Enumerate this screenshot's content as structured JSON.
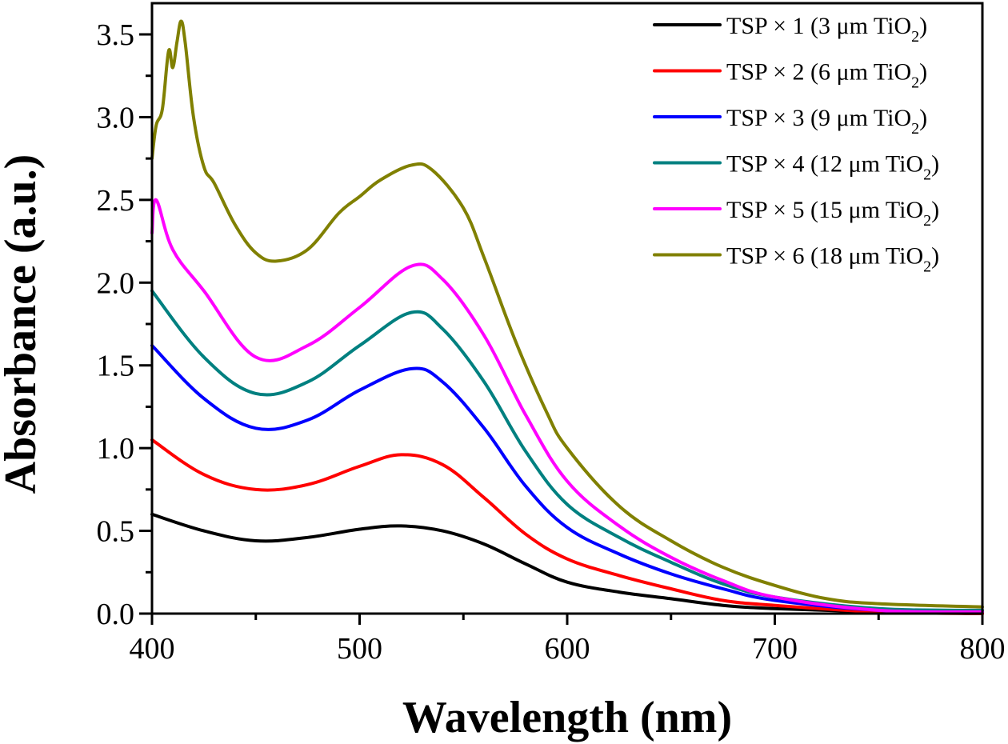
{
  "chart_data": {
    "type": "line",
    "title": "",
    "xlabel": "Wavelength (nm)",
    "ylabel": "Absorbance (a.u.)",
    "xlim": [
      400,
      800
    ],
    "ylim": [
      0.0,
      3.7
    ],
    "x_ticks": [
      400,
      500,
      600,
      700,
      800
    ],
    "x_tick_labels": [
      "400",
      "500",
      "600",
      "700",
      "800"
    ],
    "x_minor_ticks": [
      450,
      550,
      650,
      750
    ],
    "y_ticks": [
      0.0,
      0.5,
      1.0,
      1.5,
      2.0,
      2.5,
      3.0,
      3.5
    ],
    "y_tick_labels": [
      "0.0",
      "0.5",
      "1.0",
      "1.5",
      "2.0",
      "2.5",
      "3.0",
      "3.5"
    ],
    "y_minor_ticks": [
      0.25,
      0.75,
      1.25,
      1.75,
      2.25,
      2.75,
      3.25
    ],
    "grid": false,
    "legend_position": "top-right",
    "series": [
      {
        "name": "TSP × 1 (3 μm TiO2)",
        "label_main": "TSP × 1 (3 μm TiO",
        "label_sub": "2",
        "label_end": ")",
        "color": "#000000",
        "x": [
          400,
          425,
          450,
          475,
          500,
          520,
          540,
          560,
          580,
          600,
          625,
          650,
          675,
          700,
          750,
          800
        ],
        "y": [
          0.6,
          0.5,
          0.44,
          0.46,
          0.51,
          0.53,
          0.5,
          0.42,
          0.3,
          0.19,
          0.13,
          0.09,
          0.05,
          0.03,
          0.01,
          0.0
        ]
      },
      {
        "name": "TSP × 2 (6 μm TiO2)",
        "label_main": "TSP × 2 (6 μm TiO",
        "label_sub": "2",
        "label_end": ")",
        "color": "#ff0000",
        "x": [
          400,
          425,
          450,
          475,
          500,
          520,
          540,
          560,
          580,
          600,
          625,
          650,
          675,
          700,
          750,
          800
        ],
        "y": [
          1.05,
          0.84,
          0.75,
          0.78,
          0.89,
          0.96,
          0.9,
          0.7,
          0.48,
          0.33,
          0.23,
          0.15,
          0.08,
          0.05,
          0.01,
          0.0
        ]
      },
      {
        "name": "TSP × 3 (9 μm TiO2)",
        "label_main": "TSP × 3 (9 μm TiO",
        "label_sub": "2",
        "label_end": ")",
        "color": "#0000ff",
        "x": [
          400,
          425,
          450,
          475,
          500,
          525,
          540,
          560,
          580,
          600,
          625,
          650,
          675,
          700,
          750,
          800
        ],
        "y": [
          1.62,
          1.3,
          1.12,
          1.17,
          1.35,
          1.48,
          1.4,
          1.12,
          0.77,
          0.52,
          0.36,
          0.24,
          0.15,
          0.08,
          0.02,
          0.01
        ]
      },
      {
        "name": "TSP × 4 (12 μm TiO2)",
        "label_main": "TSP × 4 (12 μm TiO",
        "label_sub": "2",
        "label_end": ")",
        "color": "#008080",
        "x": [
          400,
          425,
          450,
          475,
          500,
          525,
          540,
          560,
          580,
          600,
          625,
          650,
          675,
          700,
          750,
          800
        ],
        "y": [
          1.95,
          1.55,
          1.33,
          1.4,
          1.62,
          1.82,
          1.72,
          1.4,
          0.98,
          0.66,
          0.46,
          0.31,
          0.18,
          0.1,
          0.03,
          0.02
        ]
      },
      {
        "name": "TSP × 5 (15 μm TiO2)",
        "label_main": "TSP × 5 (15 μm TiO",
        "label_sub": "2",
        "label_end": ")",
        "color": "#ff00ff",
        "x": [
          400,
          402,
          410,
          425,
          450,
          475,
          500,
          525,
          540,
          560,
          580,
          600,
          625,
          650,
          675,
          700,
          750,
          800
        ],
        "y": [
          2.3,
          2.5,
          2.2,
          1.95,
          1.55,
          1.62,
          1.85,
          2.1,
          2.02,
          1.68,
          1.2,
          0.8,
          0.53,
          0.34,
          0.2,
          0.1,
          0.02,
          0.01
        ]
      },
      {
        "name": "TSP × 6 (18 μm TiO2)",
        "label_main": "TSP × 6 (18 μm TiO",
        "label_sub": "2",
        "label_end": ")",
        "color": "#808000",
        "x": [
          400,
          402,
          405,
          408,
          410,
          412,
          414,
          416,
          420,
          425,
          430,
          440,
          450,
          460,
          475,
          490,
          500,
          510,
          525,
          535,
          550,
          560,
          575,
          590,
          600,
          625,
          650,
          675,
          700,
          725,
          750,
          800
        ],
        "y": [
          2.75,
          2.95,
          3.05,
          3.4,
          3.3,
          3.45,
          3.58,
          3.45,
          3.0,
          2.7,
          2.6,
          2.35,
          2.18,
          2.13,
          2.2,
          2.42,
          2.52,
          2.62,
          2.71,
          2.68,
          2.45,
          2.15,
          1.65,
          1.22,
          1.0,
          0.65,
          0.44,
          0.28,
          0.17,
          0.09,
          0.06,
          0.04
        ]
      }
    ]
  }
}
